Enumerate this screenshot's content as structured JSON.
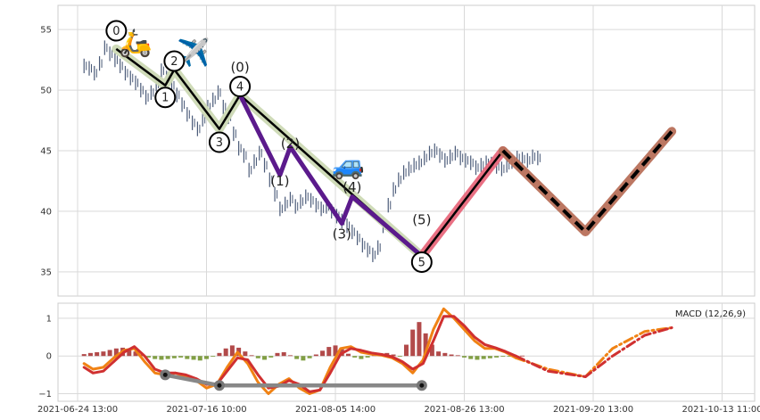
{
  "chart_data": [
    {
      "type": "line",
      "panel": "price",
      "ylim": [
        33,
        57
      ],
      "grid": true,
      "ytick_labels": [
        "35",
        "40",
        "45",
        "50",
        "55"
      ],
      "yticks": [
        35,
        40,
        45,
        50,
        55
      ],
      "xtick_labels": [
        "2021-06-24 13:00",
        "2021-07-16 10:00",
        "2021-08-05 14:00",
        "2021-08-26 13:00",
        "2021-09-20 13:00",
        "2021-10-13 11:00"
      ],
      "series": [
        {
          "role": "price-candles",
          "color": "#4a5a78",
          "x": [
            0.5,
            0.9,
            1.3,
            1.7,
            2.1,
            2.5,
            2.9,
            3.3,
            3.7,
            4.1,
            4.5,
            4.9,
            5.3,
            5.7,
            6.1,
            6.5,
            6.9,
            7.3,
            7.7,
            8.1,
            8.5,
            8.9,
            9.3,
            9.7,
            10.1,
            10.5,
            10.9,
            11.3,
            11.7,
            12.1,
            12.5,
            12.9,
            13.3,
            13.7,
            14.1,
            14.5,
            14.9,
            15.3,
            15.7,
            16.1,
            16.5,
            16.9,
            17.3,
            17.7,
            18.1,
            18.5,
            18.9,
            19.3,
            19.7,
            20.1,
            20.5,
            20.9,
            21.3,
            21.7,
            22.1,
            22.5,
            22.9,
            23.3,
            23.7,
            24.1,
            24.5,
            24.9,
            25.3,
            25.7,
            26.1,
            26.5,
            26.9,
            27.3,
            27.7,
            28.1,
            28.5,
            28.9,
            29.3,
            29.7,
            30.1,
            30.5,
            30.9,
            31.3,
            31.7,
            32.1,
            32.5,
            32.9,
            33.3,
            33.7,
            34.1,
            34.5,
            34.9,
            35.3,
            35.7
          ],
          "values": [
            52.0,
            51.8,
            51.4,
            52.2,
            53.5,
            53.0,
            52.5,
            52.0,
            51.4,
            51.0,
            50.6,
            50.0,
            49.4,
            49.8,
            50.5,
            51.6,
            51.0,
            50.4,
            49.6,
            48.8,
            48.0,
            47.3,
            46.8,
            47.6,
            48.6,
            49.2,
            49.8,
            48.6,
            47.8,
            46.4,
            45.2,
            44.6,
            43.4,
            44.1,
            44.8,
            43.8,
            42.6,
            41.4,
            40.2,
            40.6,
            41.0,
            40.4,
            40.8,
            41.2,
            40.9,
            40.5,
            40.2,
            40.4,
            40.0,
            39.6,
            39.2,
            38.8,
            38.3,
            37.8,
            37.2,
            36.8,
            36.4,
            37.0,
            38.8,
            40.5,
            41.8,
            42.6,
            43.2,
            43.5,
            43.8,
            44.0,
            44.4,
            44.8,
            45.0,
            44.6,
            44.2,
            44.5,
            44.8,
            44.4,
            44.2,
            44.0,
            43.6,
            43.8,
            44.0,
            43.9,
            43.7,
            43.5,
            43.8,
            44.1,
            44.4,
            44.3,
            44.2,
            44.5,
            44.4
          ]
        },
        {
          "role": "wave-main",
          "color": "#000000",
          "halo_color": "#ccd9b4",
          "x": [
            3.0,
            6.8,
            7.5,
            11.0,
            12.6,
            26.7
          ],
          "values": [
            53.4,
            50.4,
            51.7,
            46.8,
            49.6,
            36.3
          ]
        },
        {
          "role": "wave-sub",
          "color": "#5b1a8c",
          "x": [
            12.6,
            15.7,
            16.5,
            20.5,
            21.3,
            26.7
          ],
          "values": [
            49.6,
            43.0,
            45.3,
            39.0,
            41.2,
            36.3
          ]
        },
        {
          "role": "projection-up",
          "color": "#000000",
          "halo_color": "#e8687c",
          "x": [
            26.7,
            33.0
          ],
          "values": [
            36.3,
            45.0
          ]
        },
        {
          "role": "projection-future",
          "color": "#000000",
          "halo_color": "#b8705a",
          "dash": "dashed",
          "x": [
            33.0,
            39.4,
            46.1
          ],
          "values": [
            45.0,
            38.3,
            46.6
          ]
        }
      ],
      "annotations": [
        {
          "text": "0",
          "x": 3.0,
          "y": 54.9,
          "circled": true
        },
        {
          "text": "1",
          "x": 6.8,
          "y": 49.4,
          "circled": true
        },
        {
          "text": "2",
          "x": 7.5,
          "y": 52.4,
          "circled": true
        },
        {
          "text": "3",
          "x": 11.0,
          "y": 45.7,
          "circled": true
        },
        {
          "text": "4",
          "x": 12.6,
          "y": 50.3,
          "circled": true
        },
        {
          "text": "5",
          "x": 26.7,
          "y": 35.8,
          "circled": true
        },
        {
          "text": "(0)",
          "x": 12.6,
          "y": 51.9,
          "circled": false
        },
        {
          "text": "(1)",
          "x": 15.7,
          "y": 42.5,
          "circled": false
        },
        {
          "text": "(2)",
          "x": 16.5,
          "y": 45.6,
          "circled": false
        },
        {
          "text": "(3)",
          "x": 20.5,
          "y": 38.1,
          "circled": false
        },
        {
          "text": "(4)",
          "x": 21.3,
          "y": 42.0,
          "circled": false
        },
        {
          "text": "(5)",
          "x": 26.7,
          "y": 39.3,
          "circled": false
        }
      ],
      "icons": [
        {
          "icon": "scooter-icon",
          "glyph": "🛵",
          "x": 4.5,
          "y": 53.8
        },
        {
          "icon": "airplane-icon",
          "glyph": "✈️",
          "x": 9.0,
          "y": 53.0
        },
        {
          "icon": "car-icon",
          "glyph": "🚙",
          "x": 21.0,
          "y": 43.7
        }
      ]
    },
    {
      "type": "line",
      "panel": "macd",
      "legend": "MACD (12,26,9)",
      "ylim": [
        -1.2,
        1.4
      ],
      "grid": true,
      "ytick_labels": [
        "−1",
        "0",
        "1"
      ],
      "yticks": [
        -1,
        0,
        1
      ],
      "xtick_labels": [
        "2021-06-24 13:00",
        "2021-07-16 10:00",
        "2021-08-05 14:00",
        "2021-08-26 13:00",
        "2021-09-20 13:00",
        "2021-10-13 11:00"
      ],
      "histogram": {
        "x": [
          0.5,
          1.0,
          1.5,
          2.0,
          2.5,
          3.0,
          3.5,
          4.0,
          4.5,
          5.0,
          5.5,
          6.0,
          6.5,
          7.0,
          7.5,
          8.0,
          8.5,
          9.0,
          9.5,
          10.0,
          10.5,
          11.0,
          11.5,
          12.0,
          12.5,
          13.0,
          13.5,
          14.0,
          14.5,
          15.0,
          15.5,
          16.0,
          16.5,
          17.0,
          17.5,
          18.0,
          18.5,
          19.0,
          19.5,
          20.0,
          20.5,
          21.0,
          21.5,
          22.0,
          22.5,
          23.0,
          23.5,
          24.0,
          24.5,
          25.0,
          25.5,
          26.0,
          26.5,
          27.0,
          27.5,
          28.0,
          28.5,
          29.0,
          29.5,
          30.0,
          30.5,
          31.0,
          31.5,
          32.0,
          32.5,
          33.0,
          33.5,
          34.0,
          34.5
        ],
        "values": [
          0.05,
          0.08,
          0.1,
          0.12,
          0.16,
          0.2,
          0.22,
          0.18,
          0.12,
          0.04,
          -0.04,
          -0.08,
          -0.1,
          -0.08,
          -0.06,
          -0.04,
          -0.08,
          -0.1,
          -0.12,
          -0.08,
          -0.02,
          0.08,
          0.2,
          0.28,
          0.22,
          0.12,
          0.02,
          -0.06,
          -0.1,
          -0.04,
          0.08,
          0.1,
          0.02,
          -0.08,
          -0.12,
          -0.06,
          0.04,
          0.14,
          0.24,
          0.28,
          0.18,
          0.06,
          -0.04,
          -0.08,
          -0.04,
          0.02,
          0.06,
          0.08,
          0.04,
          -0.02,
          0.3,
          0.7,
          0.9,
          0.6,
          0.3,
          0.12,
          0.08,
          0.04,
          0.02,
          -0.04,
          -0.08,
          -0.1,
          -0.08,
          -0.06,
          -0.04,
          -0.02,
          -0.01,
          0.0,
          0.01
        ],
        "positive_color": "#a52a2a",
        "negative_color": "#6b8e23"
      },
      "series": [
        {
          "name": "MACD",
          "color": "#f08214",
          "x": [
            0.5,
            1.2,
            2.0,
            2.8,
            3.6,
            4.4,
            5.2,
            6.0,
            6.8,
            7.6,
            8.4,
            9.2,
            10.0,
            10.8,
            11.6,
            12.4,
            13.2,
            14.0,
            14.8,
            15.6,
            16.4,
            17.2,
            18.0,
            18.8,
            19.6,
            20.4,
            21.2,
            22.0,
            22.8,
            23.6,
            24.4,
            25.2,
            26.0,
            26.8,
            27.6,
            28.4,
            29.2,
            30.0,
            30.8,
            31.6,
            32.4,
            33.2,
            34.0
          ],
          "values": [
            -0.2,
            -0.35,
            -0.3,
            -0.05,
            0.15,
            0.2,
            -0.15,
            -0.45,
            -0.5,
            -0.45,
            -0.55,
            -0.65,
            -0.85,
            -0.75,
            -0.3,
            0.1,
            -0.2,
            -0.7,
            -1.0,
            -0.75,
            -0.6,
            -0.85,
            -1.0,
            -0.9,
            -0.3,
            0.2,
            0.25,
            0.1,
            0.05,
            0.02,
            -0.05,
            -0.2,
            -0.45,
            -0.1,
            0.7,
            1.25,
            1.0,
            0.7,
            0.4,
            0.2,
            0.2,
            0.1,
            -0.05
          ]
        },
        {
          "name": "Signal",
          "color": "#d03030",
          "x": [
            0.5,
            1.2,
            2.0,
            2.8,
            3.6,
            4.4,
            5.2,
            6.0,
            6.8,
            7.6,
            8.4,
            9.2,
            10.0,
            10.8,
            11.6,
            12.4,
            13.2,
            14.0,
            14.8,
            15.6,
            16.4,
            17.2,
            18.0,
            18.8,
            19.6,
            20.4,
            21.2,
            22.0,
            22.8,
            23.6,
            24.4,
            25.2,
            26.0,
            26.8,
            27.6,
            28.4,
            29.2,
            30.0,
            30.8,
            31.6,
            32.4,
            33.2,
            34.0
          ],
          "values": [
            -0.3,
            -0.45,
            -0.4,
            -0.15,
            0.1,
            0.25,
            0.0,
            -0.35,
            -0.45,
            -0.45,
            -0.5,
            -0.6,
            -0.75,
            -0.75,
            -0.4,
            -0.05,
            -0.1,
            -0.5,
            -0.85,
            -0.8,
            -0.65,
            -0.75,
            -0.95,
            -0.9,
            -0.45,
            0.05,
            0.2,
            0.15,
            0.08,
            0.04,
            -0.02,
            -0.15,
            -0.35,
            -0.2,
            0.4,
            1.05,
            1.05,
            0.8,
            0.5,
            0.3,
            0.22,
            0.12,
            0.0
          ]
        },
        {
          "name": "MACD projection",
          "color": "#f08214",
          "dash": "dash-dot",
          "x": [
            34.0,
            36.5,
            39.4,
            41.5,
            44.0,
            46.1
          ],
          "values": [
            -0.05,
            -0.35,
            -0.55,
            0.2,
            0.65,
            0.75
          ]
        },
        {
          "name": "Signal projection",
          "color": "#d03030",
          "dash": "dash-dot",
          "x": [
            34.0,
            36.5,
            39.4,
            41.5,
            44.0,
            46.1
          ],
          "values": [
            0.0,
            -0.4,
            -0.55,
            0.0,
            0.55,
            0.75
          ]
        },
        {
          "name": "Divergence",
          "color": "#888888",
          "x": [
            6.8,
            11.0,
            26.7
          ],
          "values": [
            -0.5,
            -0.78,
            -0.78
          ]
        }
      ]
    }
  ]
}
